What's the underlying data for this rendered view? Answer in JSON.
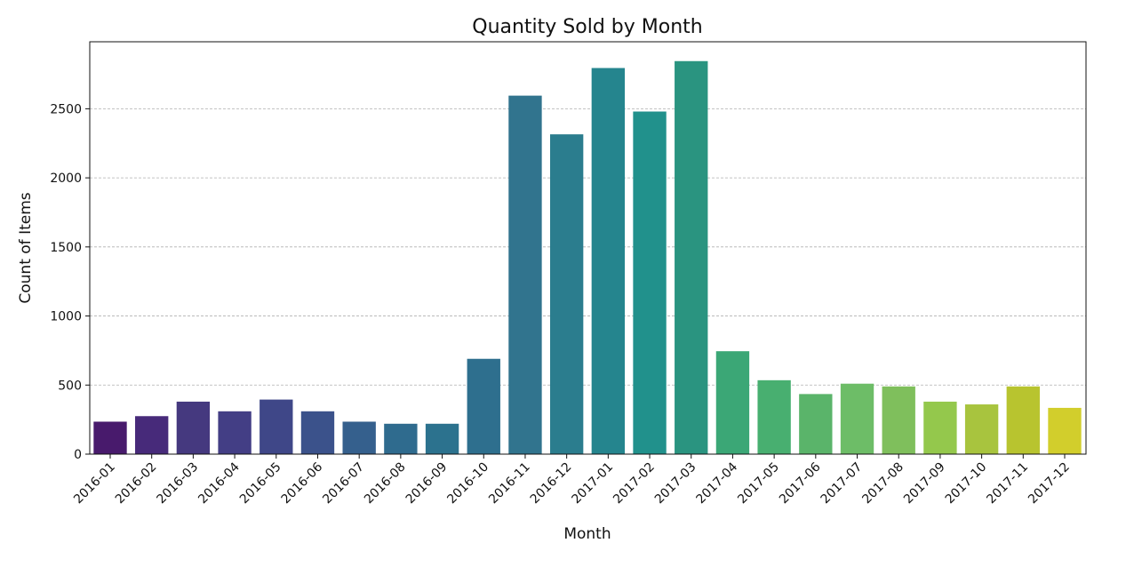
{
  "chart_data": {
    "type": "bar",
    "title": "Quantity Sold by Month",
    "xlabel": "Month",
    "ylabel": "Count of Items",
    "categories": [
      "2016-01",
      "2016-02",
      "2016-03",
      "2016-04",
      "2016-05",
      "2016-06",
      "2016-07",
      "2016-08",
      "2016-09",
      "2016-10",
      "2016-11",
      "2016-12",
      "2017-01",
      "2017-02",
      "2017-03",
      "2017-04",
      "2017-05",
      "2017-06",
      "2017-07",
      "2017-08",
      "2017-09",
      "2017-10",
      "2017-11",
      "2017-12"
    ],
    "values": [
      235,
      275,
      380,
      310,
      395,
      310,
      235,
      220,
      220,
      690,
      2595,
      2315,
      2795,
      2480,
      2845,
      745,
      535,
      435,
      510,
      490,
      380,
      360,
      490,
      335
    ],
    "ylim": [
      0,
      2985
    ],
    "yticks": [
      0,
      500,
      1000,
      1500,
      2000,
      2500
    ],
    "grid": "y-dashed",
    "palette": "viridis",
    "colors": [
      "#481a6c",
      "#472a7a",
      "#45397f",
      "#433e85",
      "#3f4788",
      "#3b528b",
      "#35608d",
      "#2f6b8e",
      "#2c728e",
      "#2e6f8e",
      "#31748e",
      "#2b7d8e",
      "#25858e",
      "#21918c",
      "#2a9480",
      "#3ba776",
      "#48af70",
      "#5ab46a",
      "#6dbd67",
      "#7fbf5c",
      "#94c84c",
      "#a8c43e",
      "#b8c42f",
      "#d2ce2c"
    ]
  }
}
